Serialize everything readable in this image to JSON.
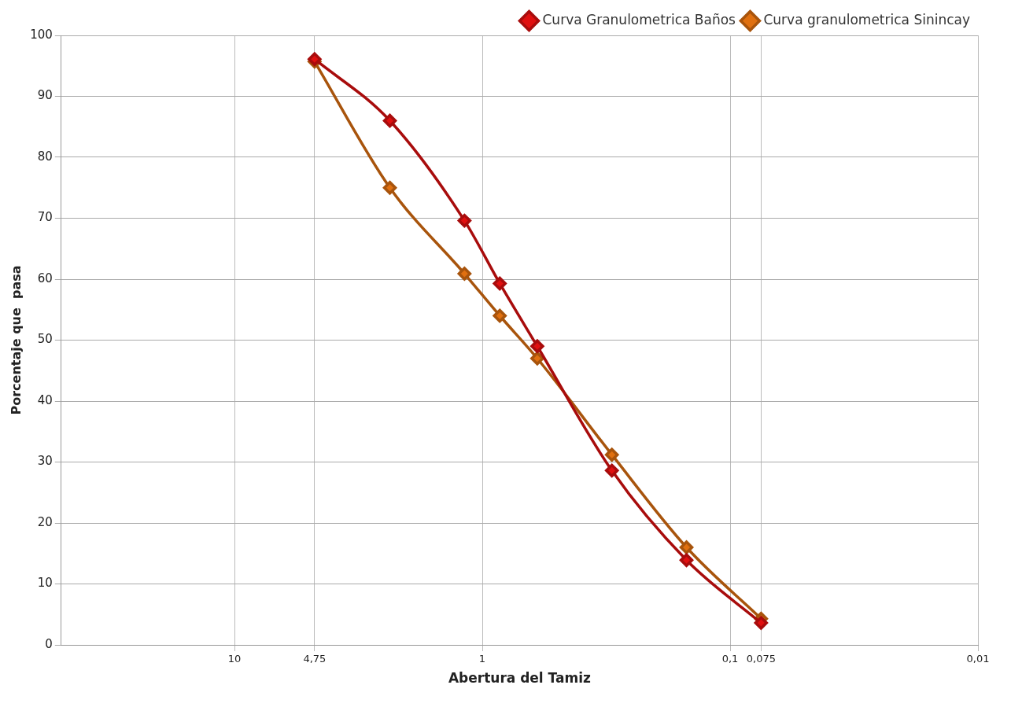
{
  "chart_data": {
    "type": "line",
    "xlabel": "Abertura del Tamiz",
    "ylabel": "Porcentaje que  pasa",
    "x": [
      4.75,
      2.36,
      1.18,
      0.85,
      0.6,
      0.3,
      0.15,
      0.075
    ],
    "series": [
      {
        "name": "Curva granulometrica Sinincay",
        "color": "#e07010",
        "values": [
          95.7,
          75,
          60.9,
          54,
          47,
          31.2,
          16,
          4.3
        ]
      },
      {
        "name": "Curva Granulometrica Baños",
        "color": "#e01010",
        "values": [
          96.1,
          86,
          69.6,
          59.3,
          49,
          28.6,
          13.9,
          3.6
        ]
      }
    ],
    "log": "x",
    "xlim": [
      50,
      0.01
    ],
    "xticks": [
      10,
      {
        "value": 4.75,
        "label": "4,75"
      },
      1,
      {
        "value": 0.1,
        "label": "0,1"
      },
      {
        "value": 0.075,
        "label": "0,075"
      },
      {
        "value": 0.01,
        "label": "0,01"
      }
    ],
    "ylim": [
      0,
      100
    ],
    "yticks": [
      0,
      10,
      20,
      30,
      40,
      50,
      60,
      70,
      80,
      90,
      100
    ],
    "grid": true,
    "legend": "top right",
    "marker": "diamond",
    "line_style": "solid"
  }
}
